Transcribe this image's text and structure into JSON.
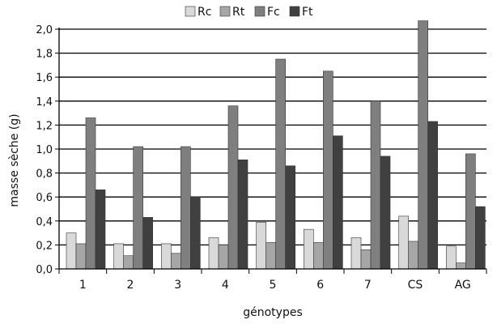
{
  "chart_data": {
    "type": "bar",
    "xlabel": "génotypes",
    "ylabel": "masse sèche (g)",
    "categories": [
      "1",
      "2",
      "3",
      "4",
      "5",
      "6",
      "7",
      "CS",
      "AG"
    ],
    "ylim": [
      0,
      2.0
    ],
    "yticks": [
      "0,0",
      "0,2",
      "0,4",
      "0,6",
      "0,8",
      "1,0",
      "1,2",
      "1,4",
      "1,6",
      "1,8",
      "2,0"
    ],
    "grid": true,
    "legend_position": "top",
    "series": [
      {
        "name": "Rc",
        "color": "#d9d9d9",
        "values": [
          0.3,
          0.21,
          0.21,
          0.26,
          0.39,
          0.33,
          0.26,
          0.44,
          0.19
        ]
      },
      {
        "name": "Rt",
        "color": "#a6a6a6",
        "values": [
          0.21,
          0.11,
          0.13,
          0.2,
          0.22,
          0.22,
          0.16,
          0.23,
          0.05
        ]
      },
      {
        "name": "Fc",
        "color": "#7f7f7f",
        "values": [
          1.26,
          1.02,
          1.02,
          1.36,
          1.75,
          1.65,
          1.4,
          2.07,
          0.96
        ]
      },
      {
        "name": "Ft",
        "color": "#404040",
        "values": [
          0.66,
          0.43,
          0.6,
          0.91,
          0.86,
          1.11,
          0.94,
          1.23,
          0.52
        ]
      }
    ]
  }
}
